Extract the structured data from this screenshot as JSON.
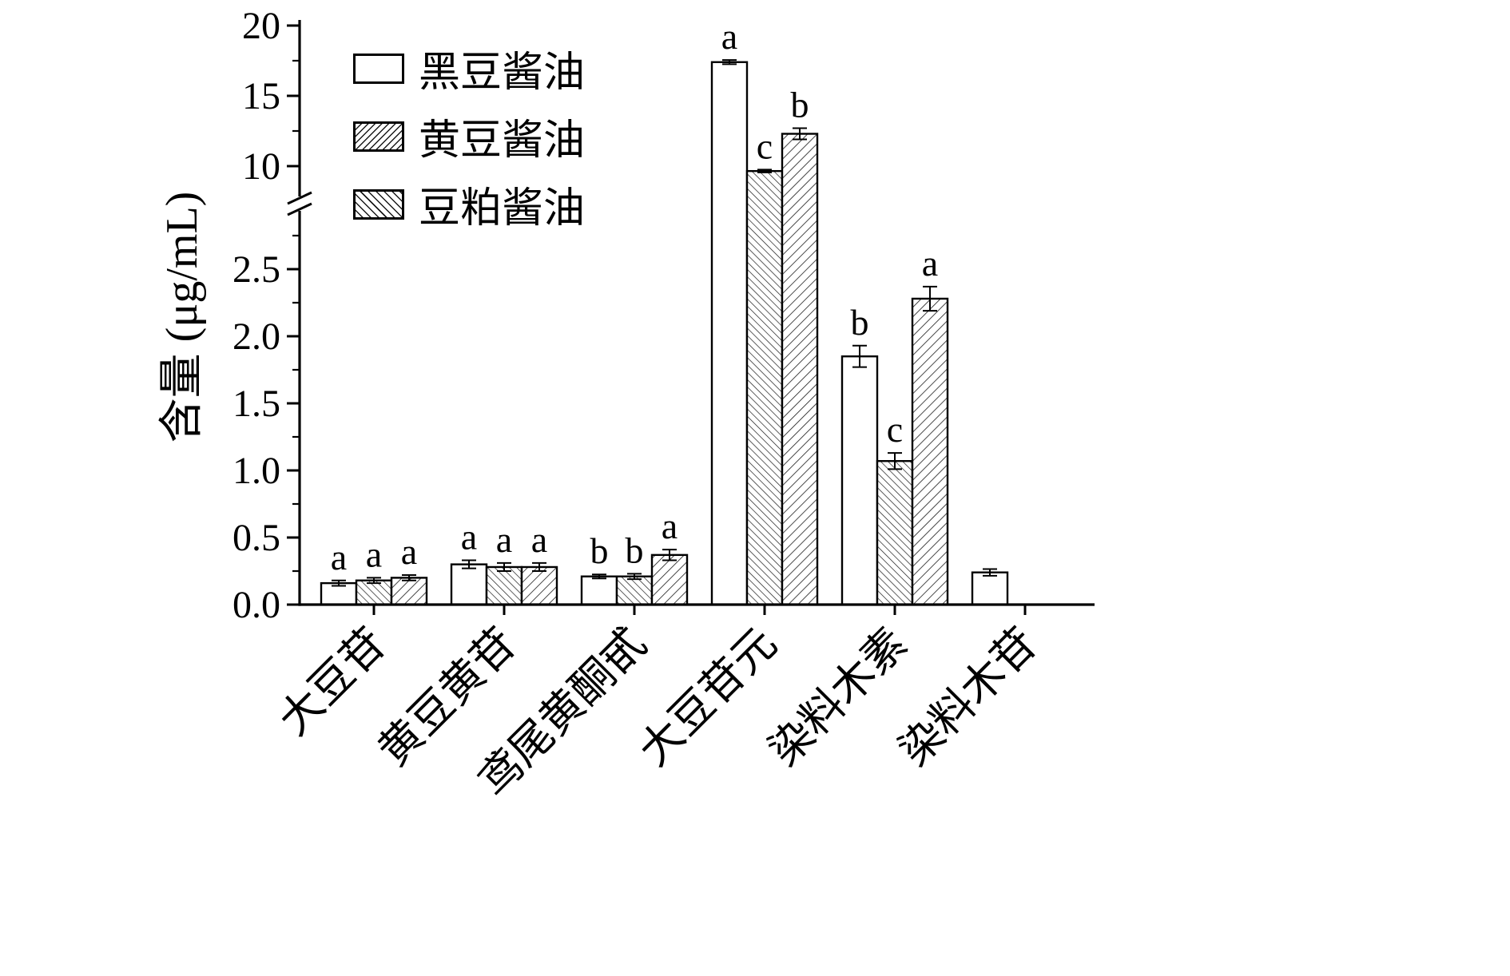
{
  "colors": {
    "background": "#ffffff",
    "axis": "#000000",
    "bar_stroke": "#000000",
    "hatch": "#1a1a1a",
    "bar_fill": "#ffffff",
    "text": "#000000"
  },
  "chart_data": {
    "type": "bar",
    "title": "",
    "ylabel": "含量 (μg/mL)",
    "xlabel": "",
    "grid": false,
    "legend_position": "top-left-inside",
    "categories": [
      "大豆苷",
      "黄豆黄苷",
      "鸢尾黄酮甙",
      "大豆苷元",
      "染料木素",
      "染料木苷"
    ],
    "series": [
      {
        "name": "黑豆酱油",
        "pattern": "solid-white",
        "values": [
          0.16,
          0.3,
          0.21,
          17.4,
          1.85,
          0.24
        ],
        "errors": [
          0.02,
          0.03,
          0.015,
          0.15,
          0.08,
          0.025
        ],
        "letters": [
          "a",
          "a",
          "b",
          "a",
          "b",
          ""
        ]
      },
      {
        "name": "黄豆酱油",
        "pattern": "hatch-forward",
        "values": [
          0.18,
          0.28,
          0.21,
          9.65,
          1.07,
          0
        ],
        "errors": [
          0.02,
          0.03,
          0.02,
          0.1,
          0.06,
          0
        ],
        "letters": [
          "a",
          "a",
          "b",
          "c",
          "c",
          ""
        ]
      },
      {
        "name": "豆粕酱油",
        "pattern": "hatch-back",
        "values": [
          0.2,
          0.28,
          0.37,
          12.3,
          2.28,
          0
        ],
        "errors": [
          0.02,
          0.03,
          0.04,
          0.4,
          0.09,
          0
        ],
        "letters": [
          "a",
          "a",
          "a",
          "b",
          "a",
          ""
        ]
      }
    ],
    "y_axis": {
      "broken": true,
      "lower_range": [
        0.0,
        3.0
      ],
      "upper_range": [
        10,
        20
      ],
      "lower_tick_values": [
        0,
        0.5,
        1.0,
        1.5,
        2.0,
        2.5
      ],
      "lower_tick_labels": [
        "0.0",
        "0.5",
        "1.0",
        "1.5",
        "2.0",
        "2.5"
      ],
      "lower_minor_ticks": [
        0.25,
        0.75,
        1.25,
        1.75,
        2.25,
        2.75
      ],
      "upper_tick_values": [
        10,
        15,
        20
      ],
      "upper_tick_labels": [
        "10",
        "15",
        "20"
      ],
      "upper_minor_ticks": [
        12.5,
        17.5
      ]
    }
  }
}
